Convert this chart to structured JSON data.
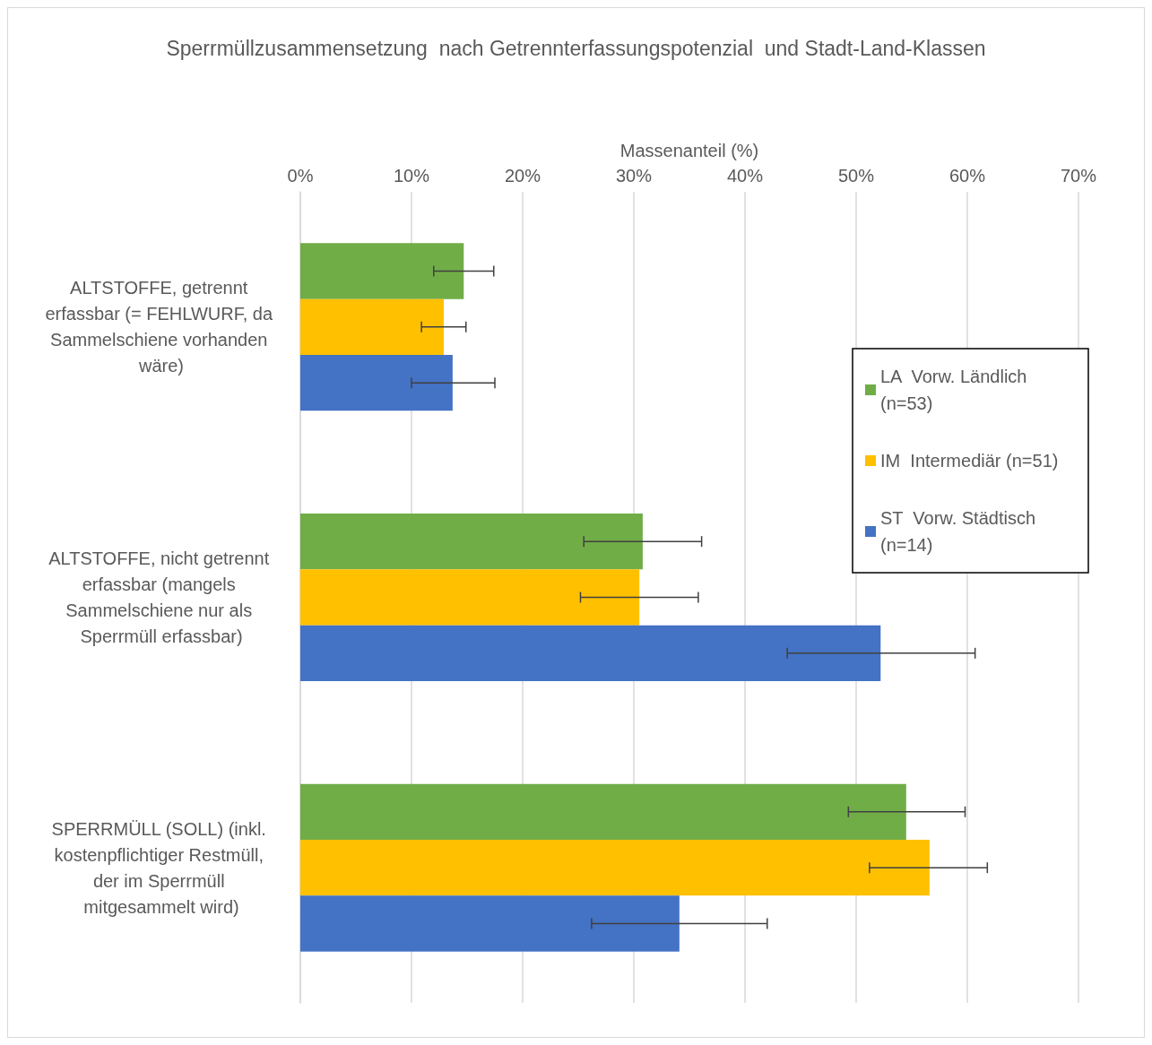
{
  "chart_data": {
    "type": "bar",
    "orientation": "horizontal",
    "title": "Sperrmüllzusammensetzung  nach Getrennterfassungspotenzial  und Stadt-Land-Klassen",
    "xlabel": "Massenanteil (%)",
    "categories": [
      "ALTSTOFFE, getrennt erfassbar (= FEHLWURF, da Sammelschiene vorhanden wäre)",
      "ALTSTOFFE, nicht getrennt erfassbar (mangels Sammelschiene nur als Sperrmüll erfassbar)",
      "SPERRMÜLL (SOLL) (inkl. kostenpflichtiger Restmüll, der im Sperrmüll mitgesammelt wird)"
    ],
    "series": [
      {
        "name": "LA  Vorw. Ländlich (n=53)",
        "color": "#70ad47",
        "values": [
          14.7,
          30.8,
          54.5
        ],
        "errors": [
          [
            12.0,
            17.4
          ],
          [
            25.5,
            36.1
          ],
          [
            49.3,
            59.8
          ]
        ]
      },
      {
        "name": "IM  Intermediär (n=51)",
        "color": "#ffc000",
        "values": [
          12.9,
          30.5,
          56.6
        ],
        "errors": [
          [
            10.9,
            14.9
          ],
          [
            25.2,
            35.8
          ],
          [
            51.2,
            61.8
          ]
        ]
      },
      {
        "name": "ST  Vorw. Städtisch (n=14)",
        "color": "#4472c4",
        "values": [
          13.7,
          52.2,
          34.1
        ],
        "errors": [
          [
            10.0,
            17.5
          ],
          [
            43.8,
            60.7
          ],
          [
            26.2,
            42.0
          ]
        ]
      }
    ],
    "xlim": [
      0,
      70
    ],
    "xticks": [
      {
        "value": 0,
        "label": "0%"
      },
      {
        "value": 10,
        "label": "10%"
      },
      {
        "value": 20,
        "label": "20%"
      },
      {
        "value": 30,
        "label": "30%"
      },
      {
        "value": 40,
        "label": "40%"
      },
      {
        "value": 50,
        "label": "50%"
      },
      {
        "value": 60,
        "label": "60%"
      },
      {
        "value": 70,
        "label": "70%"
      }
    ],
    "grid": "x",
    "legend": "right"
  }
}
